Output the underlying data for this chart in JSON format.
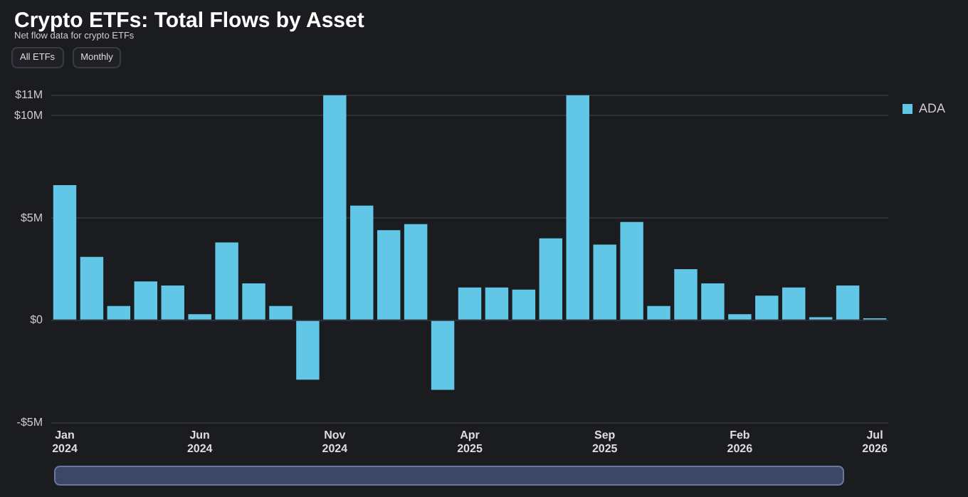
{
  "chart_data": {
    "type": "bar",
    "title": "Crypto ETFs: Total Flows by Asset",
    "subtitle": "Net flow data for crypto ETFs",
    "annotations": [
      "All ETFs",
      "Monthly"
    ],
    "categories": [
      "Jan 2024",
      null,
      null,
      null,
      null,
      "Jun 2024",
      null,
      null,
      null,
      null,
      "Nov 2024",
      null,
      null,
      null,
      null,
      "Apr 2025",
      null,
      null,
      null,
      null,
      "Sep 2025",
      null,
      null,
      null,
      null,
      "Feb 2026",
      null,
      null,
      null,
      null,
      "Jul 2026"
    ],
    "series": [
      {
        "name": "ADA",
        "color": "#62c6e6",
        "values": [
          6.6,
          3.1,
          0.7,
          1.9,
          1.7,
          0.3,
          3.8,
          1.8,
          0.7,
          -2.9,
          11.0,
          5.6,
          4.4,
          4.7,
          -3.4,
          1.6,
          1.6,
          1.5,
          4.0,
          11.0,
          3.7,
          4.8,
          0.7,
          2.5,
          1.8,
          0.3,
          1.2,
          1.6,
          0.15,
          1.7,
          0.1
        ]
      }
    ],
    "ylim": [
      -5,
      11
    ],
    "yticks": [
      {
        "value": -5,
        "label": "-$5M"
      },
      {
        "value": 0,
        "label": "$0"
      },
      {
        "value": 5,
        "label": "$5M"
      },
      {
        "value": 10,
        "label": "$10M"
      },
      {
        "value": 11,
        "label": "$11M"
      }
    ],
    "grid": "y",
    "legend": "top right"
  }
}
